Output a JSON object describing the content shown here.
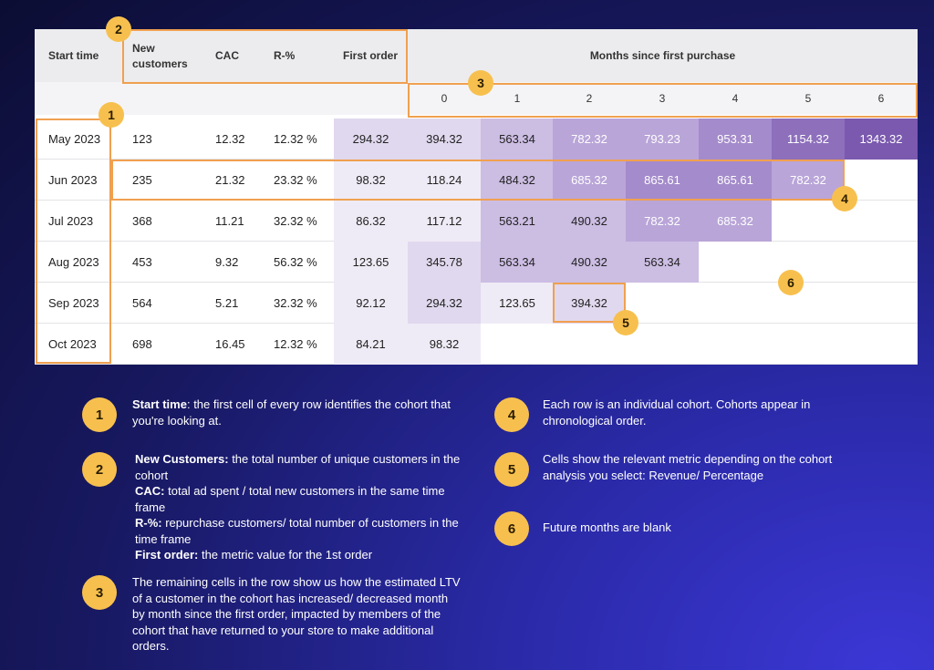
{
  "headers": {
    "start_time": "Start time",
    "new_customers": "New\ncustomers",
    "cac": "CAC",
    "r_pct": "R-%",
    "first_order": "First order",
    "months_since": "Months since first purchase",
    "month_indices": [
      "0",
      "1",
      "2",
      "3",
      "4",
      "5",
      "6"
    ]
  },
  "rows": [
    {
      "start": "May 2023",
      "new_customers": "123",
      "cac": "12.32",
      "r_pct": "12.32 %",
      "first_order": "294.32",
      "months": [
        "394.32",
        "563.34",
        "782.32",
        "793.23",
        "953.31",
        "1154.32",
        "1343.32"
      ]
    },
    {
      "start": "Jun 2023",
      "new_customers": "235",
      "cac": "21.32",
      "r_pct": "23.32 %",
      "first_order": "98.32",
      "months": [
        "118.24",
        "484.32",
        "685.32",
        "865.61",
        "865.61",
        "782.32"
      ]
    },
    {
      "start": "Jul 2023",
      "new_customers": "368",
      "cac": "11.21",
      "r_pct": "32.32 %",
      "first_order": "86.32",
      "months": [
        "117.12",
        "563.21",
        "490.32",
        "782.32",
        "685.32"
      ]
    },
    {
      "start": "Aug 2023",
      "new_customers": "453",
      "cac": "9.32",
      "r_pct": "56.32 %",
      "first_order": "123.65",
      "months": [
        "345.78",
        "563.34",
        "490.32",
        "563.34"
      ]
    },
    {
      "start": "Sep 2023",
      "new_customers": "564",
      "cac": "5.21",
      "r_pct": "32.32 %",
      "first_order": "92.12",
      "months": [
        "294.32",
        "123.65",
        "394.32"
      ]
    },
    {
      "start": "Oct 2023",
      "new_customers": "698",
      "cac": "16.45",
      "r_pct": "12.32 %",
      "first_order": "84.21",
      "months": [
        "98.32"
      ]
    }
  ],
  "colors": {
    "heat_levels": [
      "#ffffff",
      "#efebf6",
      "#e0d8ee",
      "#ccbde3",
      "#b9a5d8",
      "#a48bcb",
      "#8d6fbc",
      "#7a59ae"
    ],
    "annotation_border": "#f0a050",
    "badge": "#f7c04e"
  },
  "callout_numbers": [
    "1",
    "2",
    "3",
    "4",
    "5",
    "6"
  ],
  "legend": [
    {
      "num": "1",
      "segments": [
        {
          "b": "Start time"
        },
        {
          "t": ": the first cell of every row identifies the cohort that you're looking at."
        }
      ]
    },
    {
      "num": "2",
      "segments": [
        {
          "b": "New Customers:"
        },
        {
          "t": " the total number of unique customers in the cohort"
        },
        {
          "br": true
        },
        {
          "b": "CAC:"
        },
        {
          "t": " total ad spent / total new customers in the same time frame"
        },
        {
          "br": true
        },
        {
          "b": "R-%:"
        },
        {
          "t": " repurchase customers/ total number of customers in the time frame"
        },
        {
          "br": true
        },
        {
          "b": "First order:"
        },
        {
          "t": " the metric value for the 1st order"
        }
      ]
    },
    {
      "num": "3",
      "segments": [
        {
          "t": "The remaining cells in the row show us how the estimated LTV of a customer in the cohort has increased/ decreased month by month since the first order, impacted by members of the cohort that have returned to your store to make additional orders."
        }
      ]
    },
    {
      "num": "4",
      "segments": [
        {
          "t": "Each row is an individual cohort. Cohorts appear in chronological order."
        }
      ]
    },
    {
      "num": "5",
      "segments": [
        {
          "t": "Cells show the relevant metric depending on the cohort analysis you select: Revenue/ Percentage"
        }
      ]
    },
    {
      "num": "6",
      "segments": [
        {
          "t": "Future months are blank"
        }
      ]
    }
  ]
}
